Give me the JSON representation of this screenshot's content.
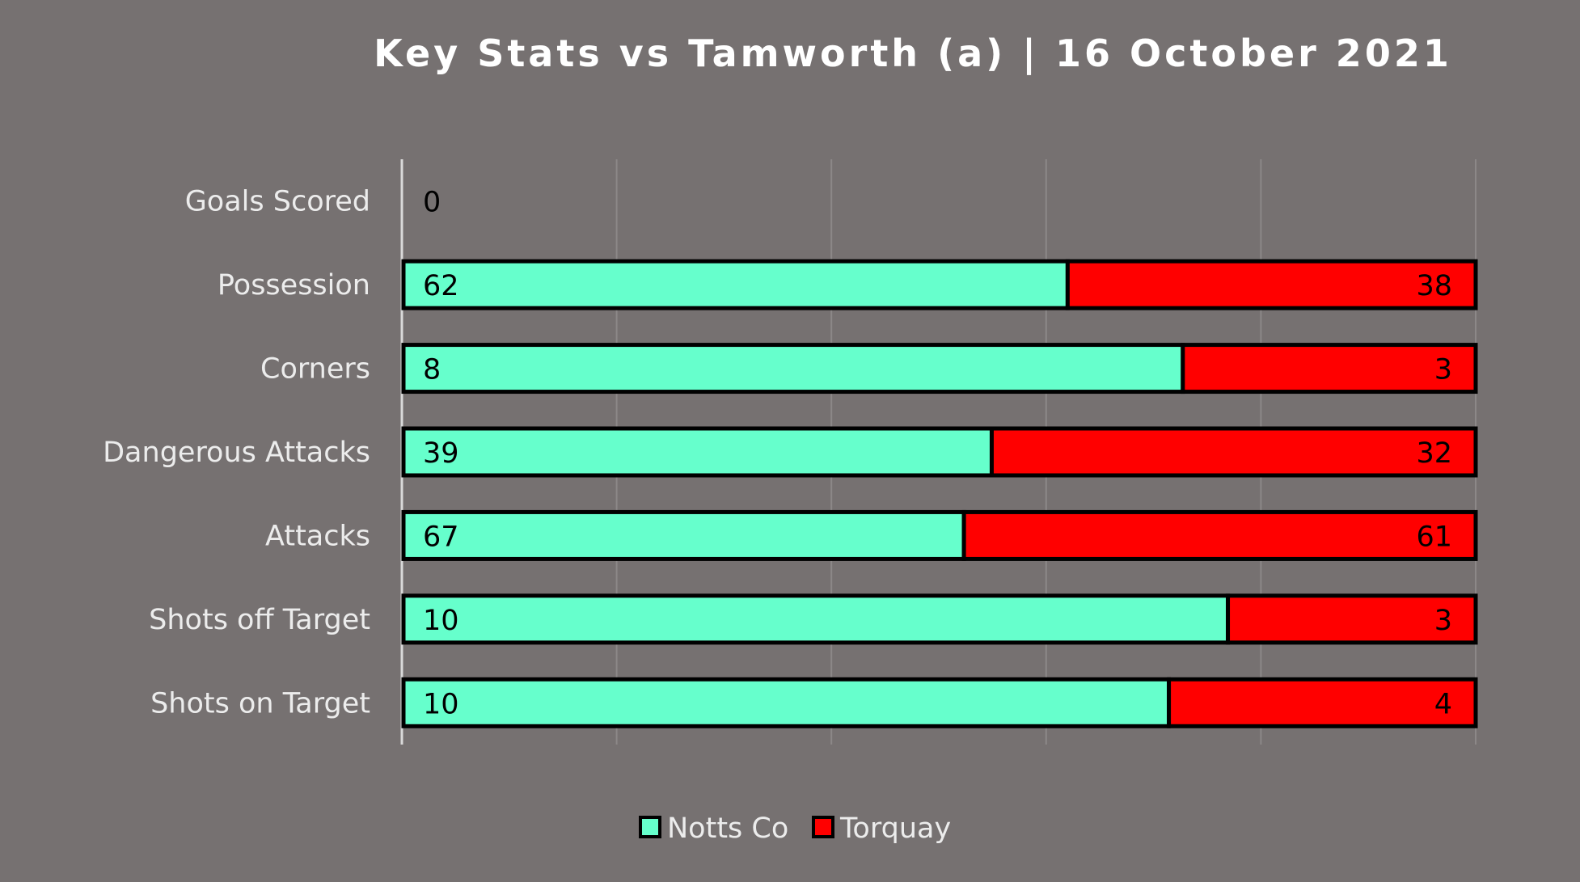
{
  "chart_data": {
    "type": "bar",
    "orientation": "horizontal",
    "stacking": "percent",
    "title": "Key Stats vs Tamworth (a) | 16 October 2021",
    "categories": [
      "Goals Scored",
      "Possession",
      "Corners",
      "Dangerous Attacks",
      "Attacks",
      "Shots off Target",
      "Shots on Target"
    ],
    "series": [
      {
        "name": "Notts Co",
        "values": [
          0,
          62,
          8,
          39,
          67,
          10,
          10
        ],
        "color": "#66FFCC"
      },
      {
        "name": "Torquay",
        "values": [
          0,
          38,
          3,
          32,
          61,
          3,
          4
        ],
        "color": "#FF0000"
      }
    ],
    "value_labels": [
      [
        "0",
        "62",
        "8",
        "39",
        "67",
        "10",
        "10"
      ],
      [
        "",
        "38",
        "3",
        "32",
        "61",
        "3",
        "4"
      ]
    ],
    "xlim": [
      0,
      1
    ],
    "grid": true,
    "legend_position": "bottom",
    "colors": {
      "background": "#767171",
      "gridline": "#8c8888",
      "axis": "#d9d9d9",
      "bar_border": "#000000"
    }
  }
}
